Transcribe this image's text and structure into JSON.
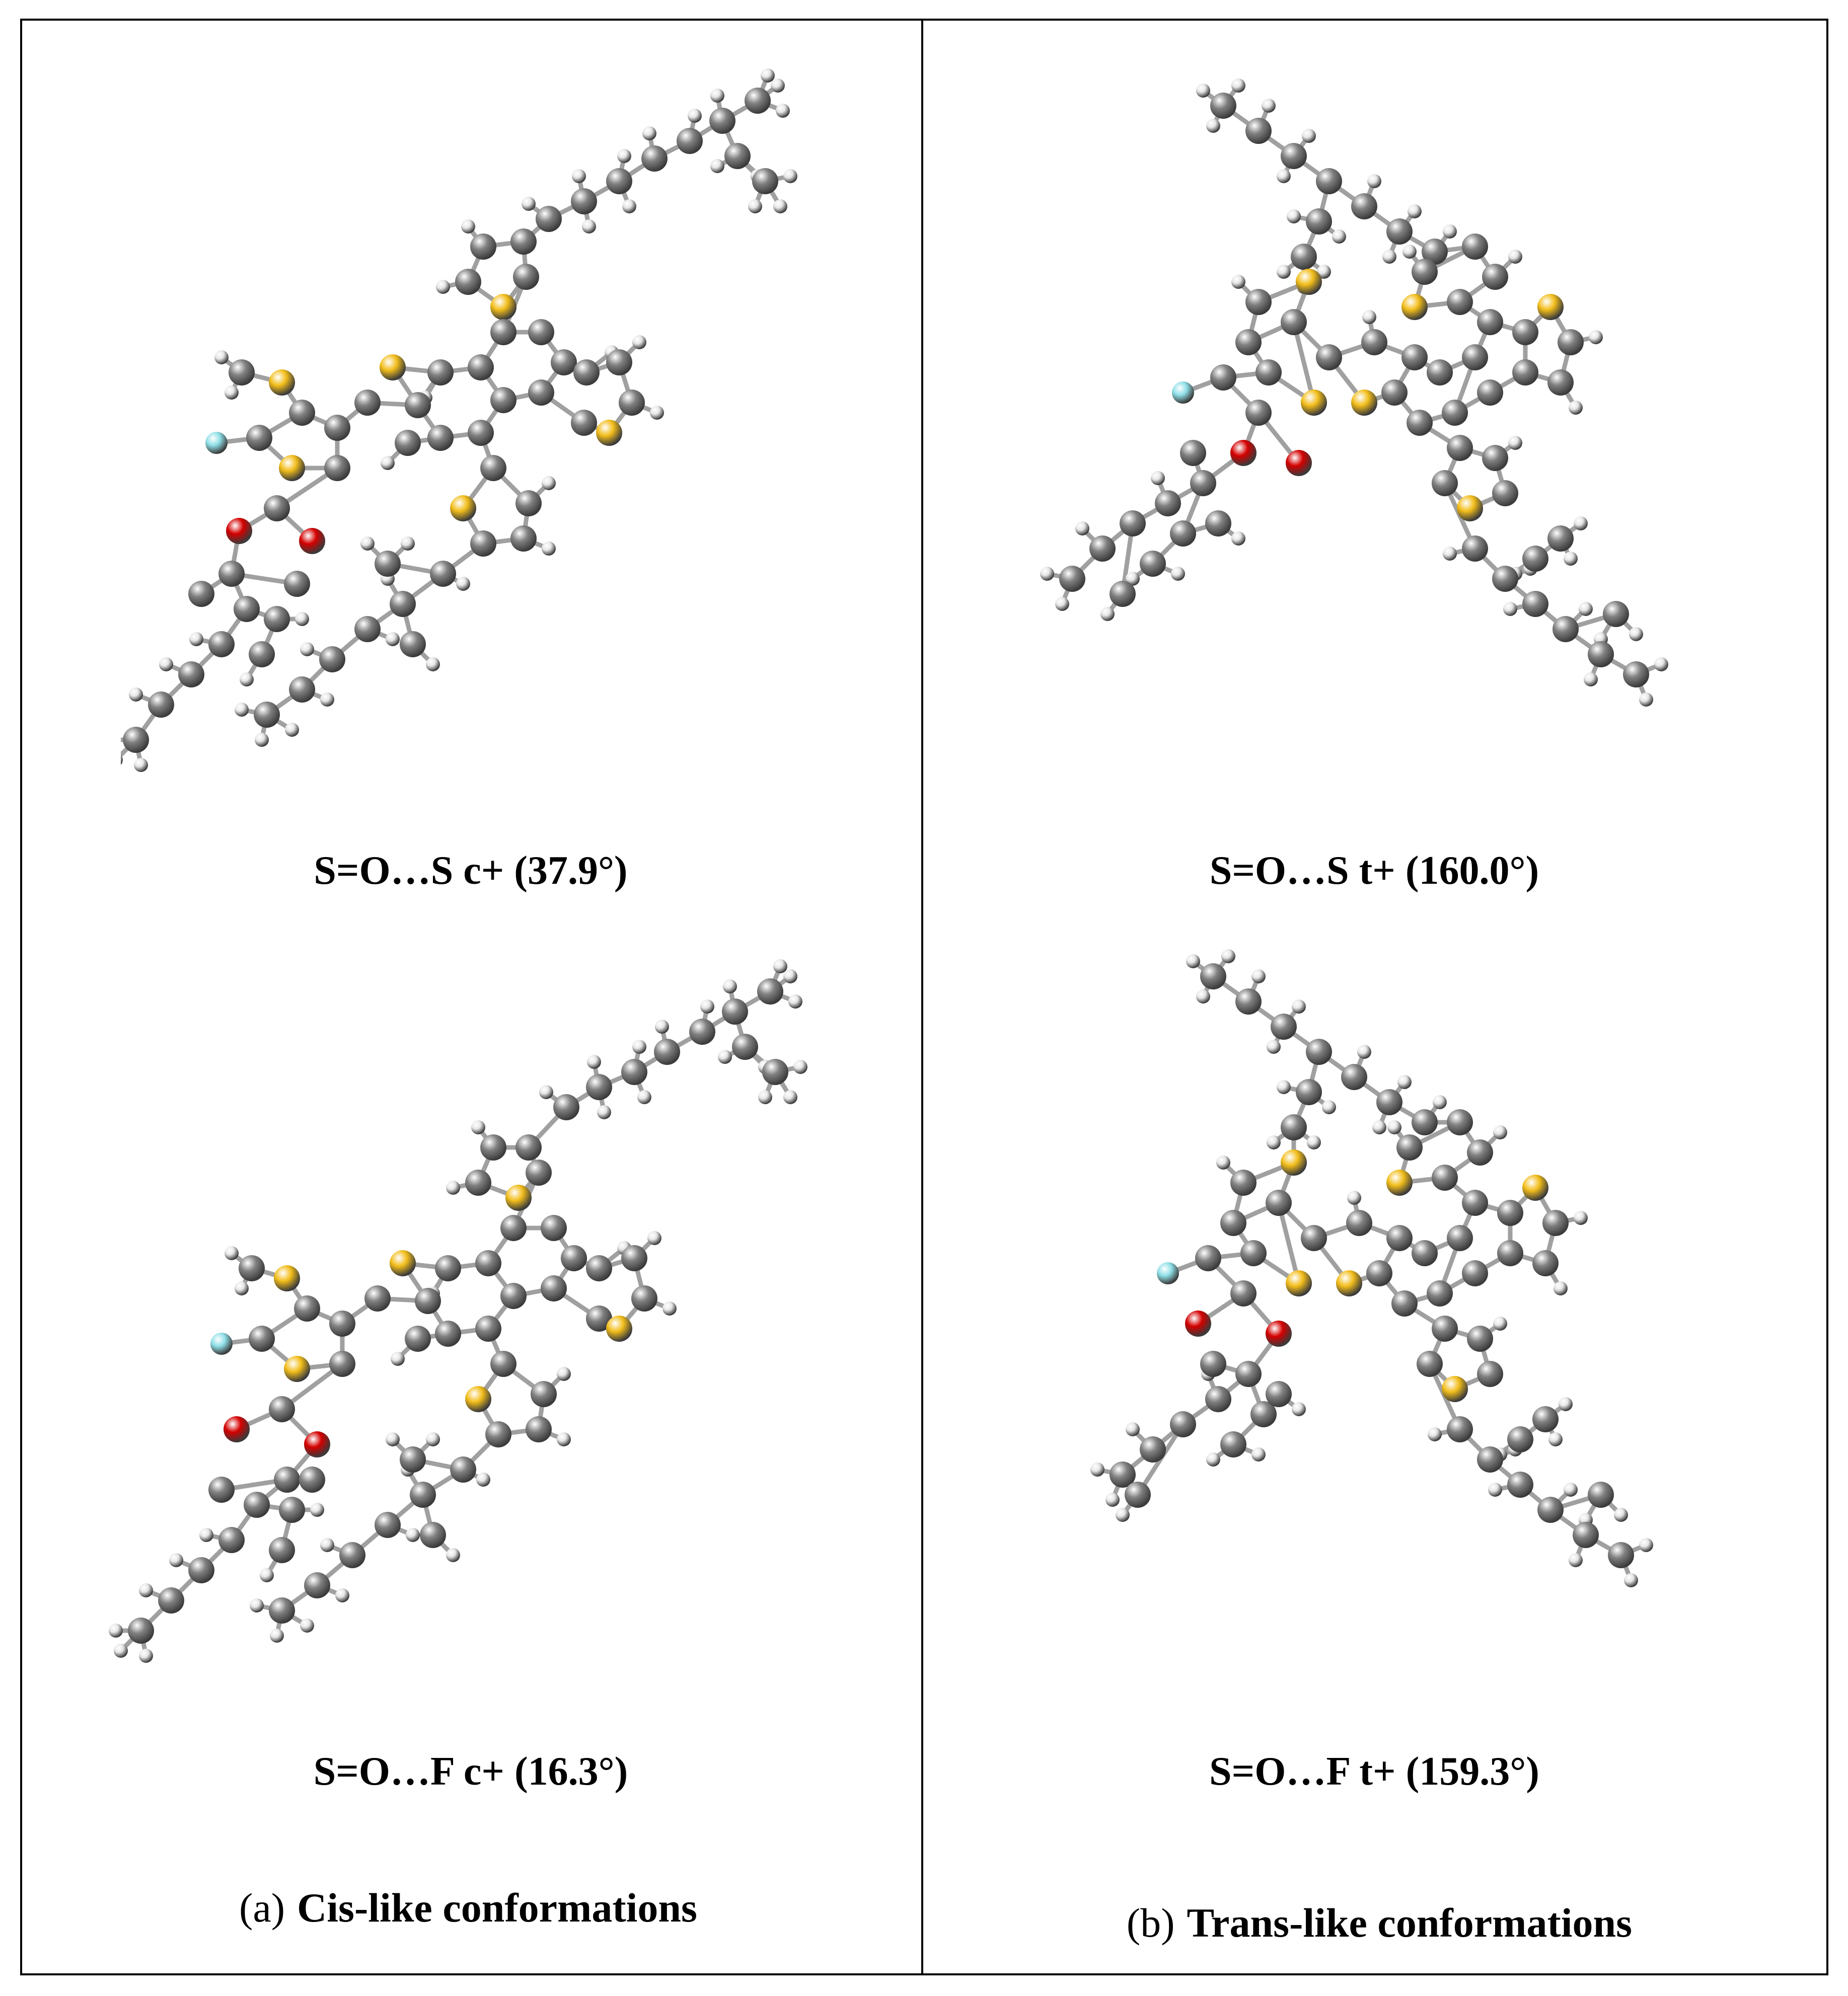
{
  "figure": {
    "columns": [
      {
        "tag": "(a)",
        "title": "Cis-like conformations",
        "panels": [
          {
            "caption": "S=O…S c+ (37.9°)"
          },
          {
            "caption": "S=O…F c+ (16.3°)"
          }
        ]
      },
      {
        "tag": "(b)",
        "title": "Trans-like conformations",
        "panels": [
          {
            "caption": "S=O…S t+ (160.0°)"
          },
          {
            "caption": "S=O…F t+ (159.3°)"
          }
        ]
      }
    ]
  },
  "colors": {
    "carbon": "#808080",
    "hydrogen": "#e6e6e6",
    "sulfur": "#f2bd1a",
    "oxygen": "#d40000",
    "fluorine": "#8fe0e8",
    "bond": "#a0a0a0",
    "frame": "#000000"
  }
}
